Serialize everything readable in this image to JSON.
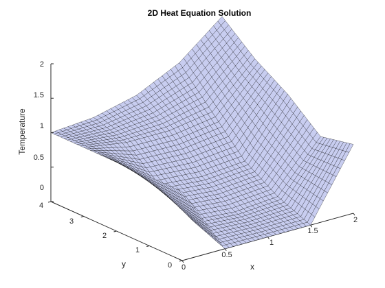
{
  "chart_data": {
    "type": "surface",
    "title": "2D Heat Equation Solution",
    "xlabel": "x",
    "ylabel": "y",
    "zlabel": "Temperature",
    "xlim": [
      0,
      2
    ],
    "ylim": [
      0,
      4
    ],
    "zlim": [
      0,
      2
    ],
    "x_ticks": [
      "0",
      "0.5",
      "1",
      "1.5",
      "2"
    ],
    "y_ticks": [
      "0",
      "1",
      "2",
      "3",
      "4"
    ],
    "z_ticks": [
      "0",
      "0.5",
      "1",
      "1.5",
      "2"
    ],
    "grid": false,
    "face_color": "#c8cdf0",
    "edge_color": "#000000",
    "x": [
      0,
      0.5,
      1,
      1.5,
      2
    ],
    "y": [
      0,
      1,
      2,
      3,
      4
    ],
    "z": [
      [
        1.0,
        0.0,
        0.0,
        0.0,
        1.0
      ],
      [
        1.0,
        0.2,
        0.15,
        0.2,
        0.9
      ],
      [
        1.0,
        0.5,
        0.45,
        0.5,
        1.3
      ],
      [
        1.0,
        0.9,
        0.9,
        1.0,
        1.6
      ],
      [
        1.0,
        1.05,
        1.2,
        1.5,
        2.0
      ]
    ]
  }
}
